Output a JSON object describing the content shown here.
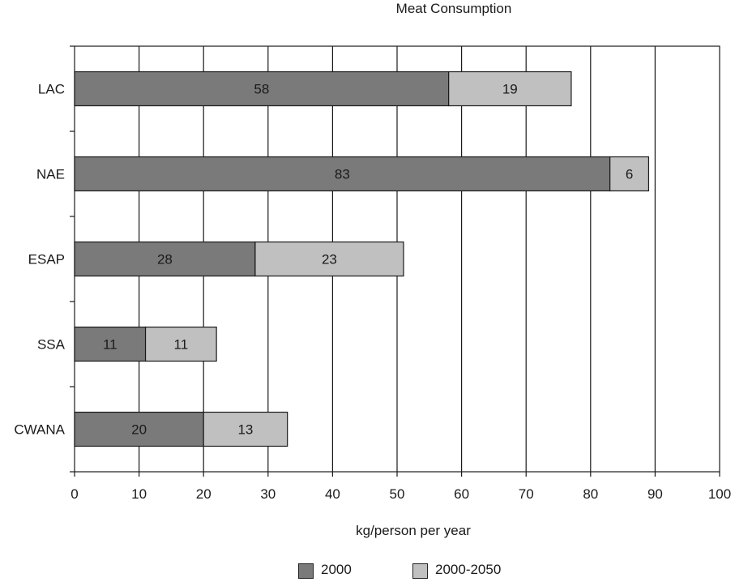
{
  "chart_data": {
    "type": "bar",
    "orientation": "horizontal",
    "stacked": true,
    "title": "Meat Consumption",
    "xlabel": "kg/person per year",
    "ylabel": "",
    "xlim": [
      0,
      100
    ],
    "x_ticks": [
      0,
      10,
      20,
      30,
      40,
      50,
      60,
      70,
      80,
      90,
      100
    ],
    "grid": "vertical",
    "legend_position": "bottom",
    "categories": [
      "LAC",
      "NAE",
      "ESAP",
      "SSA",
      "CWANA"
    ],
    "series": [
      {
        "name": "2000",
        "color": "#7a7a7a",
        "values": [
          58,
          83,
          28,
          11,
          20
        ]
      },
      {
        "name": "2000-2050",
        "color": "#c0c0c0",
        "values": [
          19,
          6,
          23,
          11,
          13
        ]
      }
    ]
  }
}
